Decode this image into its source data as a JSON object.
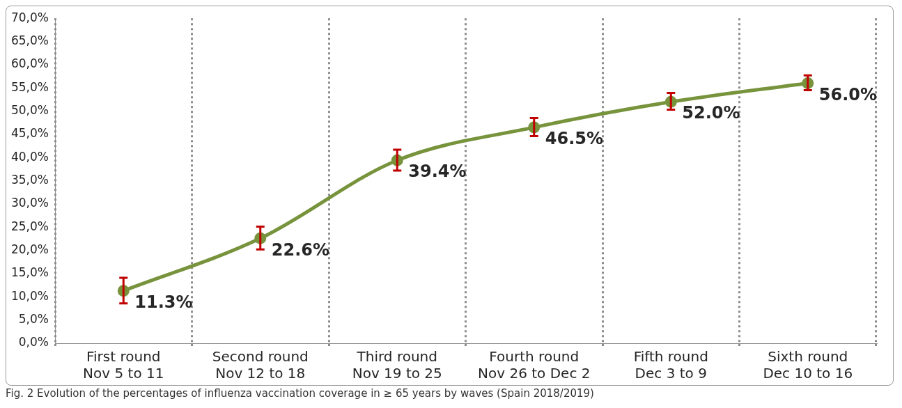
{
  "chart_data": {
    "type": "line",
    "categories": [
      "First round\nNov 5 to 11",
      "Second round\nNov 12 to 18",
      "Third round\nNov 19 to 25",
      "Fourth round\nNov 26 to Dec 2",
      "Fifth round\nDec 3 to 9",
      "Sixth round\nDec 10 to 16"
    ],
    "series": [
      {
        "color": "#77933c",
        "values": [
          11.3,
          22.6,
          39.4,
          46.5,
          52.0,
          56.0
        ],
        "errors": [
          [
            8.6,
            14.1
          ],
          [
            20.2,
            25.1
          ],
          [
            37.2,
            41.7
          ],
          [
            44.6,
            48.5
          ],
          [
            50.3,
            53.9
          ],
          [
            54.5,
            57.7
          ]
        ],
        "value_labels": [
          "11.3%",
          "22.6%",
          "39.4%",
          "46.5%",
          "52.0%",
          "56.0%"
        ]
      }
    ],
    "ylim": [
      0,
      70
    ],
    "yticks": [
      {
        "value": 0,
        "label": "0,0%"
      },
      {
        "value": 5,
        "label": "5,0%"
      },
      {
        "value": 10,
        "label": "10,0%"
      },
      {
        "value": 15,
        "label": "15,0%"
      },
      {
        "value": 20,
        "label": "20,0%"
      },
      {
        "value": 25,
        "label": "25,0%"
      },
      {
        "value": 30,
        "label": "30,0%"
      },
      {
        "value": 35,
        "label": "35,0%"
      },
      {
        "value": 40,
        "label": "40,0%"
      },
      {
        "value": 45,
        "label": "45,0%"
      },
      {
        "value": 50,
        "label": "50,0%"
      },
      {
        "value": 55,
        "label": "55,0%"
      },
      {
        "value": 60,
        "label": "60,0%"
      },
      {
        "value": 65,
        "label": "65,0%"
      },
      {
        "value": 70,
        "label": "70,0%"
      }
    ],
    "grid": "x",
    "legend": false,
    "marker": "circle",
    "line_style": "solid",
    "annotations": [
      "Fig. 2  Evolution of the percentages of influenza vaccination coverage in ≥ 65 years by waves (Spain 2018/2019)"
    ]
  }
}
